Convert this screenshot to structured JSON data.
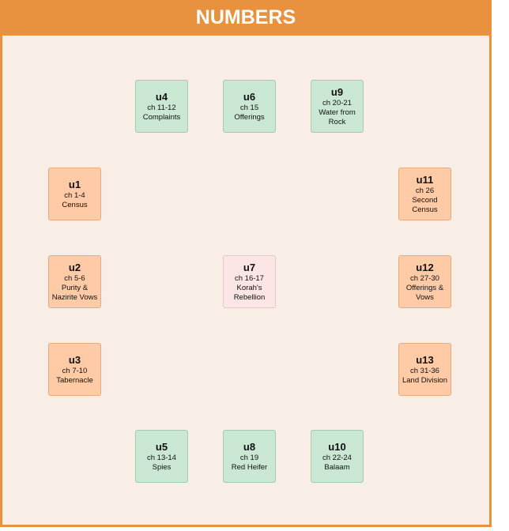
{
  "title": "NUMBERS",
  "colors": {
    "header": "#E8913F",
    "background": "#F8EEE6",
    "green": "#C9E7D3",
    "peach": "#FFCBA6",
    "pink": "#FCE5E5"
  },
  "units": [
    {
      "id": "u1",
      "chapters": "ch 1-4",
      "topic": "Census",
      "color": "peach"
    },
    {
      "id": "u2",
      "chapters": "ch 5-6",
      "topic": "Purity & Nazirite Vows",
      "color": "peach"
    },
    {
      "id": "u3",
      "chapters": "ch 7-10",
      "topic": "Tabernacle",
      "color": "peach"
    },
    {
      "id": "u4",
      "chapters": "ch 11-12",
      "topic": "Complaints",
      "color": "green"
    },
    {
      "id": "u5",
      "chapters": "ch 13-14",
      "topic": "Spies",
      "color": "green"
    },
    {
      "id": "u6",
      "chapters": "ch 15",
      "topic": "Offerings",
      "color": "green"
    },
    {
      "id": "u7",
      "chapters": "ch 16-17",
      "topic": "Korah's Rebellion",
      "color": "pink"
    },
    {
      "id": "u8",
      "chapters": "ch 19",
      "topic": "Red Heifer",
      "color": "green"
    },
    {
      "id": "u9",
      "chapters": "ch 20-21",
      "topic": "Water from Rock",
      "color": "green"
    },
    {
      "id": "u10",
      "chapters": "ch 22-24",
      "topic": "Balaam",
      "color": "green"
    },
    {
      "id": "u11",
      "chapters": "ch 26",
      "topic": "Second Census",
      "color": "peach"
    },
    {
      "id": "u12",
      "chapters": "ch 27-30",
      "topic": "Offerings & Vows",
      "color": "peach"
    },
    {
      "id": "u13",
      "chapters": "ch 31-36",
      "topic": "Land Division",
      "color": "peach"
    }
  ]
}
